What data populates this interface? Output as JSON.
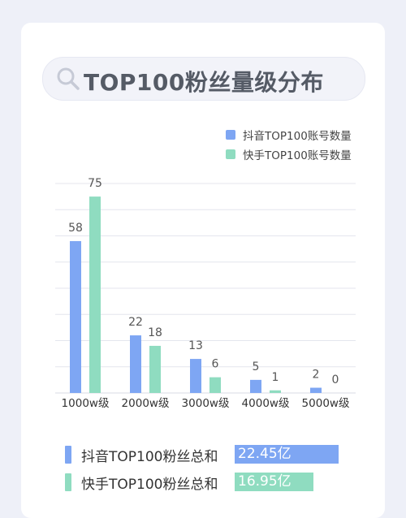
{
  "header": {
    "title": "TOP100粉丝量级分布",
    "icon": "search-icon"
  },
  "colors": {
    "douyin": "#7ea6f3",
    "kuaishou": "#8fdcc0",
    "grid": "#e4e6ee",
    "text": "#444444"
  },
  "chart_data": {
    "type": "bar",
    "categories": [
      "1000w级",
      "2000w级",
      "3000w级",
      "4000w级",
      "5000w级"
    ],
    "series": [
      {
        "name": "抖音TOP100账号数量",
        "values": [
          58,
          22,
          13,
          5,
          2
        ]
      },
      {
        "name": "快手TOP100账号数量",
        "values": [
          75,
          18,
          6,
          1,
          0
        ]
      }
    ],
    "ylim": [
      0,
      80
    ],
    "grid": true,
    "legend_position": "top-right",
    "data_labels": true
  },
  "totals": [
    {
      "label": "抖音TOP100粉丝总和",
      "value": "22.45亿",
      "amount": 22.45
    },
    {
      "label": "快手TOP100粉丝总和",
      "value": "16.95亿",
      "amount": 16.95
    }
  ]
}
